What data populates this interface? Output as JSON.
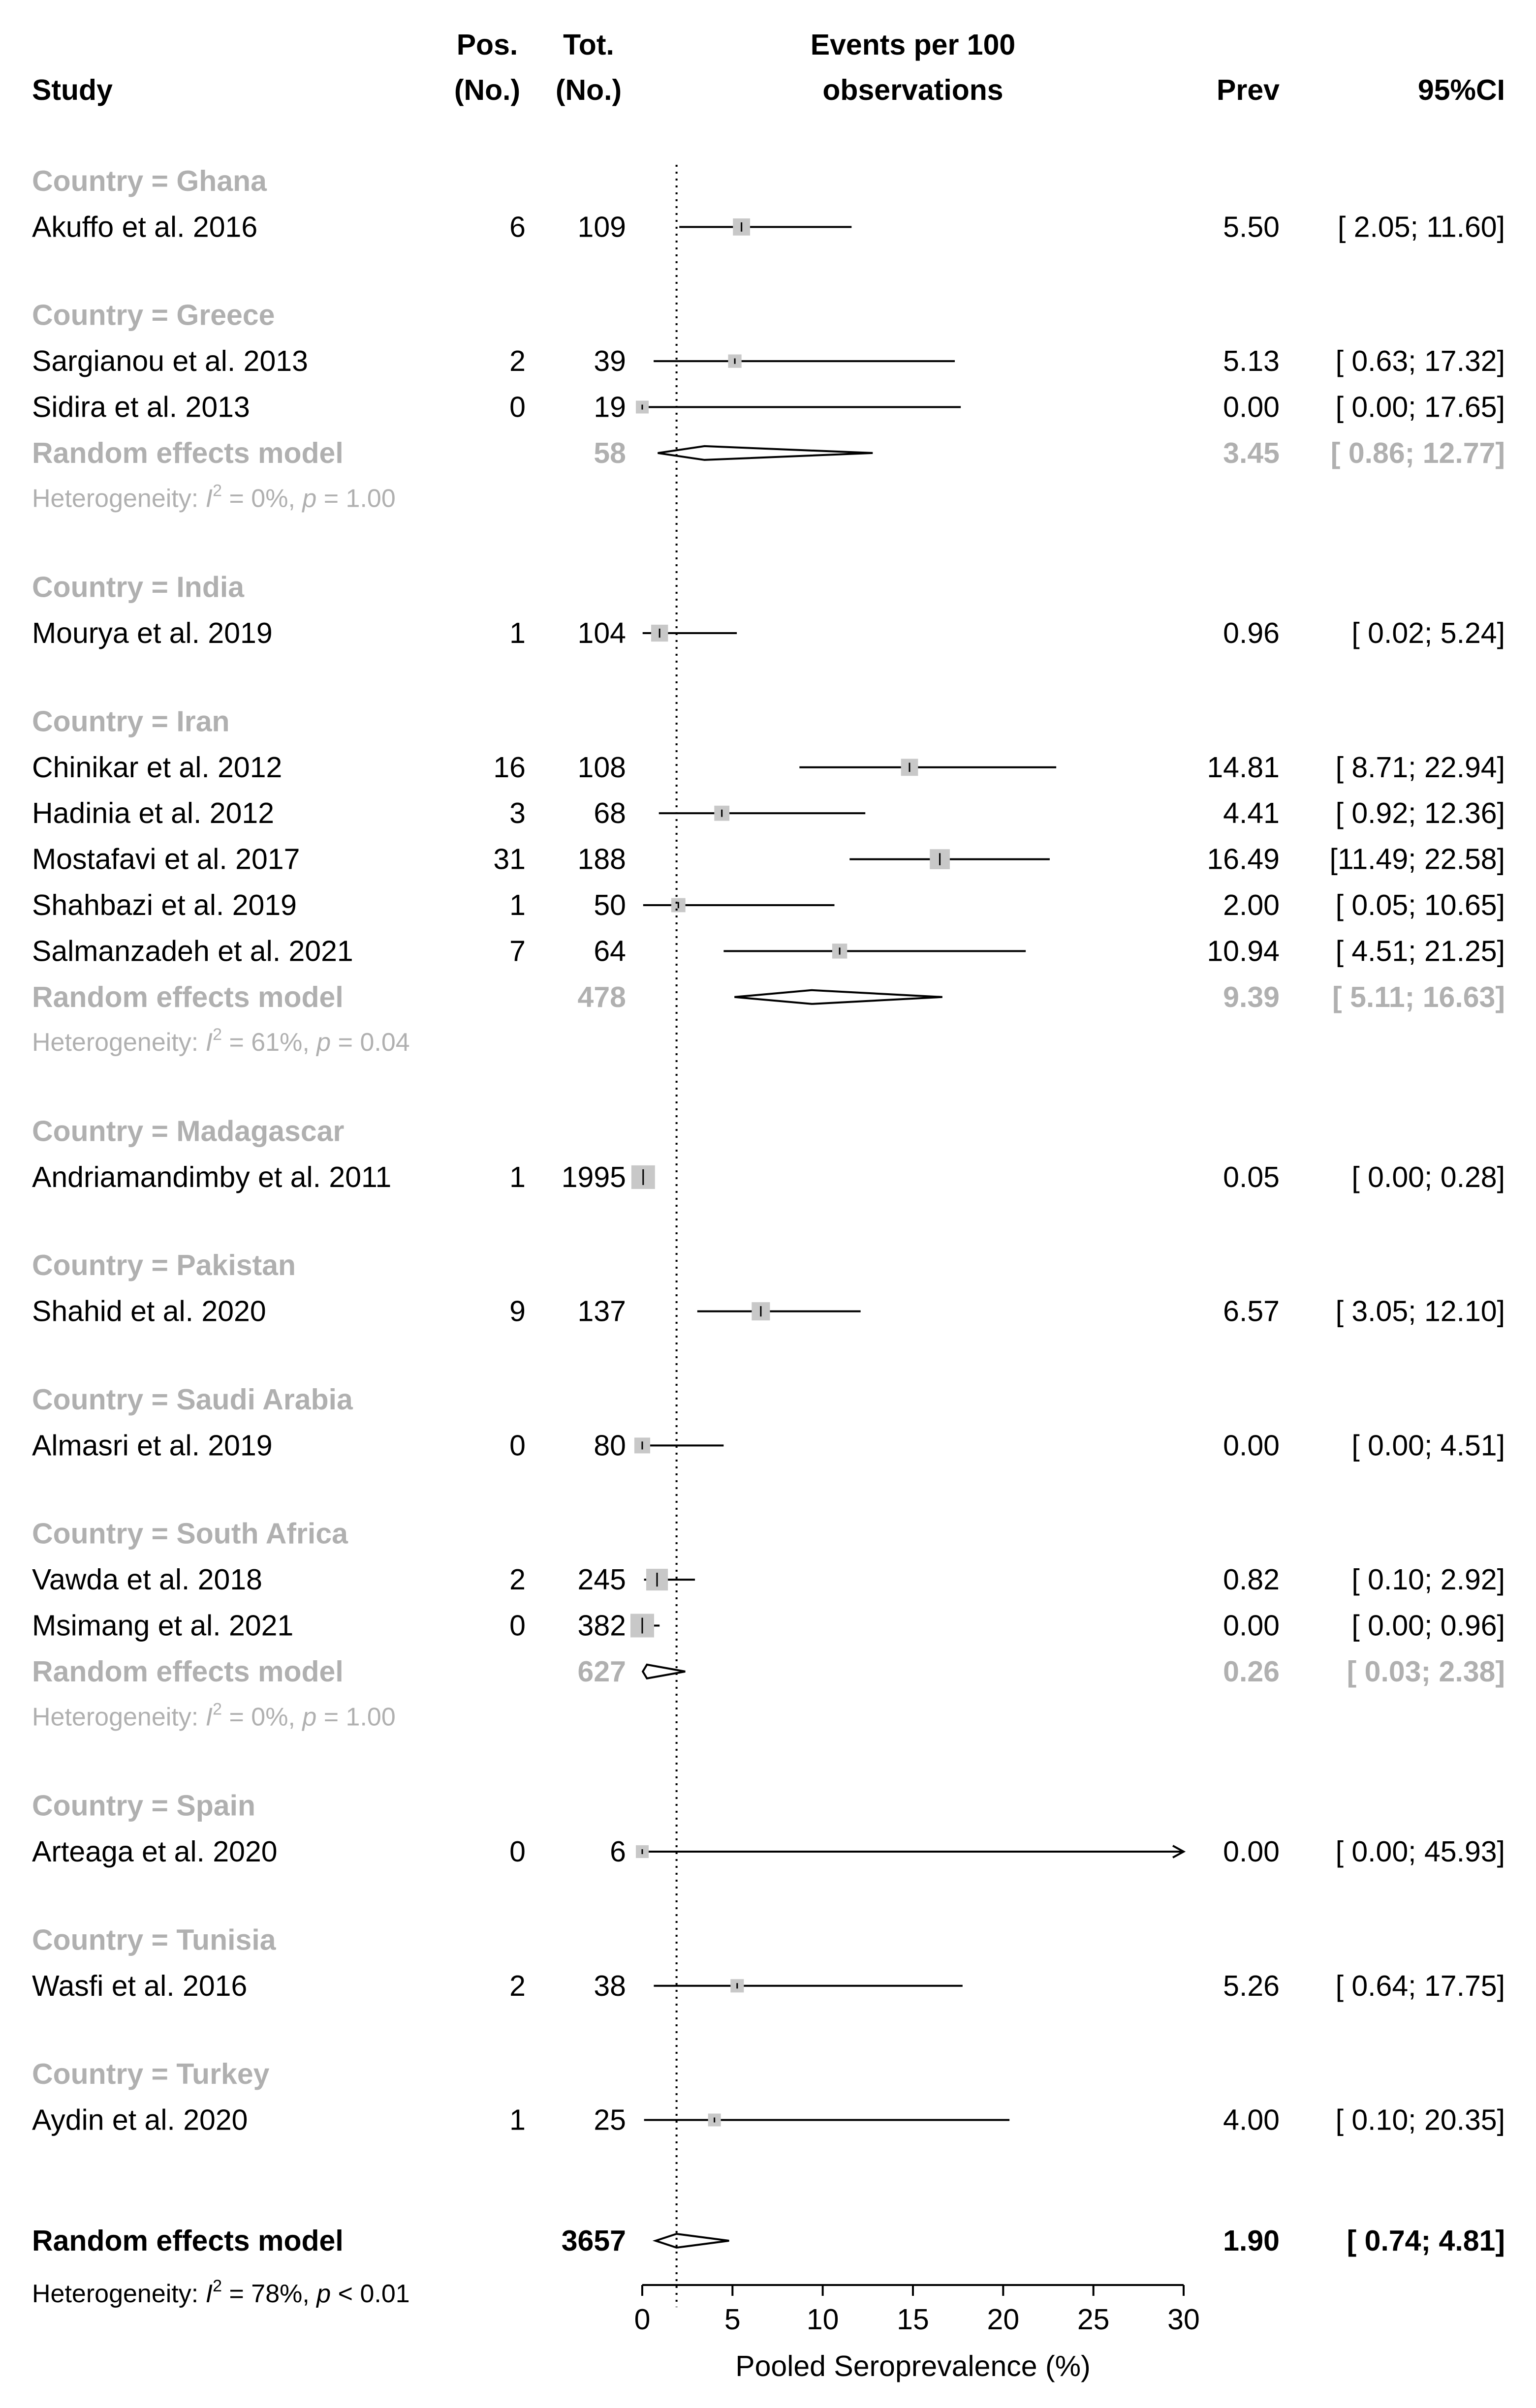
{
  "chart_data": {
    "type": "forest",
    "header": {
      "study": "Study",
      "pos": [
        "Pos.",
        "(No.)"
      ],
      "tot": [
        "Tot.",
        "(No.)"
      ],
      "events": [
        "Events per 100",
        "observations"
      ],
      "prev": "Prev",
      "ci": "95%CI"
    },
    "xlabel": "Pooled Seroprevalence (%)",
    "xlim": [
      0,
      30
    ],
    "xticks": [
      "0",
      "5",
      "10",
      "15",
      "20",
      "25",
      "30"
    ],
    "reference_line": 1.9,
    "groups": [
      {
        "label": "Country = Ghana",
        "studies": [
          {
            "name": "Akuffo et al. 2016",
            "pos": "6",
            "tot": "109",
            "prev": 5.5,
            "lo": 2.05,
            "hi": 11.6,
            "prev_text": "5.50",
            "ci_text": "[ 2.05;  11.60]"
          }
        ]
      },
      {
        "label": "Country = Greece",
        "studies": [
          {
            "name": "Sargianou et al. 2013",
            "pos": "2",
            "tot": "39",
            "prev": 5.13,
            "lo": 0.63,
            "hi": 17.32,
            "prev_text": "5.13",
            "ci_text": "[ 0.63;  17.32]"
          },
          {
            "name": "Sidira et al. 2013",
            "pos": "0",
            "tot": "19",
            "prev": 0.0,
            "lo": 0.0,
            "hi": 17.65,
            "prev_text": "0.00",
            "ci_text": "[ 0.00;  17.65]"
          }
        ],
        "model": {
          "label": "Random effects model",
          "tot": "58",
          "prev": 3.45,
          "lo": 0.86,
          "hi": 12.77,
          "prev_text": "3.45",
          "ci_text": "[ 0.86;  12.77]"
        },
        "heterogeneity": {
          "prefix": "Heterogeneity: ",
          "stat": "I",
          "sup": "2",
          "rest": " = 0%, ",
          "p": "p",
          "ptail": " = 1.00"
        }
      },
      {
        "label": "Country = India",
        "studies": [
          {
            "name": "Mourya et al. 2019",
            "pos": "1",
            "tot": "104",
            "prev": 0.96,
            "lo": 0.02,
            "hi": 5.24,
            "prev_text": "0.96",
            "ci_text": "[ 0.02;   5.24]"
          }
        ]
      },
      {
        "label": "Country = Iran",
        "studies": [
          {
            "name": "Chinikar et al. 2012",
            "pos": "16",
            "tot": "108",
            "prev": 14.81,
            "lo": 8.71,
            "hi": 22.94,
            "prev_text": "14.81",
            "ci_text": "[ 8.71;  22.94]"
          },
          {
            "name": "Hadinia et al. 2012",
            "pos": "3",
            "tot": "68",
            "prev": 4.41,
            "lo": 0.92,
            "hi": 12.36,
            "prev_text": "4.41",
            "ci_text": "[ 0.92;  12.36]"
          },
          {
            "name": "Mostafavi et al. 2017",
            "pos": "31",
            "tot": "188",
            "prev": 16.49,
            "lo": 11.49,
            "hi": 22.58,
            "prev_text": "16.49",
            "ci_text": "[11.49;  22.58]"
          },
          {
            "name": "Shahbazi et al. 2019",
            "pos": "1",
            "tot": "50",
            "prev": 2.0,
            "lo": 0.05,
            "hi": 10.65,
            "prev_text": "2.00",
            "ci_text": "[ 0.05;  10.65]"
          },
          {
            "name": "Salmanzadeh et al. 2021",
            "pos": "7",
            "tot": "64",
            "prev": 10.94,
            "lo": 4.51,
            "hi": 21.25,
            "prev_text": "10.94",
            "ci_text": "[ 4.51;  21.25]"
          }
        ],
        "model": {
          "label": "Random effects model",
          "tot": "478",
          "prev": 9.39,
          "lo": 5.11,
          "hi": 16.63,
          "prev_text": "9.39",
          "ci_text": "[ 5.11;  16.63]"
        },
        "heterogeneity": {
          "prefix": "Heterogeneity: ",
          "stat": "I",
          "sup": "2",
          "rest": " = 61%, ",
          "p": "p",
          "ptail": " = 0.04"
        }
      },
      {
        "label": "Country = Madagascar",
        "studies": [
          {
            "name": "Andriamandimby et al. 2011",
            "pos": "1",
            "tot": "1995",
            "prev": 0.05,
            "lo": 0.0,
            "hi": 0.28,
            "prev_text": "0.05",
            "ci_text": "[ 0.00;   0.28]"
          }
        ]
      },
      {
        "label": "Country = Pakistan",
        "studies": [
          {
            "name": "Shahid et al. 2020",
            "pos": "9",
            "tot": "137",
            "prev": 6.57,
            "lo": 3.05,
            "hi": 12.1,
            "prev_text": "6.57",
            "ci_text": "[ 3.05;  12.10]"
          }
        ]
      },
      {
        "label": "Country = Saudi Arabia",
        "studies": [
          {
            "name": "Almasri et al. 2019",
            "pos": "0",
            "tot": "80",
            "prev": 0.0,
            "lo": 0.0,
            "hi": 4.51,
            "prev_text": "0.00",
            "ci_text": "[ 0.00;   4.51]"
          }
        ]
      },
      {
        "label": "Country = South Africa",
        "studies": [
          {
            "name": "Vawda et al. 2018",
            "pos": "2",
            "tot": "245",
            "prev": 0.82,
            "lo": 0.1,
            "hi": 2.92,
            "prev_text": "0.82",
            "ci_text": "[ 0.10;   2.92]"
          },
          {
            "name": "Msimang et al. 2021",
            "pos": "0",
            "tot": "382",
            "prev": 0.0,
            "lo": 0.0,
            "hi": 0.96,
            "prev_text": "0.00",
            "ci_text": "[ 0.00;   0.96]"
          }
        ],
        "model": {
          "label": "Random effects model",
          "tot": "627",
          "prev": 0.26,
          "lo": 0.03,
          "hi": 2.38,
          "prev_text": "0.26",
          "ci_text": "[ 0.03;   2.38]"
        },
        "heterogeneity": {
          "prefix": "Heterogeneity: ",
          "stat": "I",
          "sup": "2",
          "rest": " = 0%, ",
          "p": "p",
          "ptail": " = 1.00"
        }
      },
      {
        "label": "Country = Spain",
        "studies": [
          {
            "name": "Arteaga et al. 2020",
            "pos": "0",
            "tot": "6",
            "prev": 0.0,
            "lo": 0.0,
            "hi": 45.93,
            "prev_text": "0.00",
            "ci_text": "[ 0.00;  45.93]"
          }
        ]
      },
      {
        "label": "Country = Tunisia",
        "studies": [
          {
            "name": "Wasfi et al. 2016",
            "pos": "2",
            "tot": "38",
            "prev": 5.26,
            "lo": 0.64,
            "hi": 17.75,
            "prev_text": "5.26",
            "ci_text": "[ 0.64;  17.75]"
          }
        ]
      },
      {
        "label": "Country = Turkey",
        "studies": [
          {
            "name": "Aydin et al. 2020",
            "pos": "1",
            "tot": "25",
            "prev": 4.0,
            "lo": 0.1,
            "hi": 20.35,
            "prev_text": "4.00",
            "ci_text": "[ 0.10;  20.35]"
          }
        ]
      }
    ],
    "overall": {
      "label": "Random effects model",
      "tot": "3657",
      "prev": 1.9,
      "lo": 0.74,
      "hi": 4.81,
      "prev_text": "1.90",
      "ci_text": "[ 0.74;   4.81]"
    },
    "overall_heterogeneity": {
      "prefix": "Heterogeneity: ",
      "stat": "I",
      "sup": "2",
      "rest": " = 78%, ",
      "p": "p",
      "ptail": " < 0.01"
    },
    "colors": {
      "text": "#000000",
      "subgroup_text": "#b0b0b0",
      "square": "#c8c8c8",
      "line": "#000000"
    }
  }
}
